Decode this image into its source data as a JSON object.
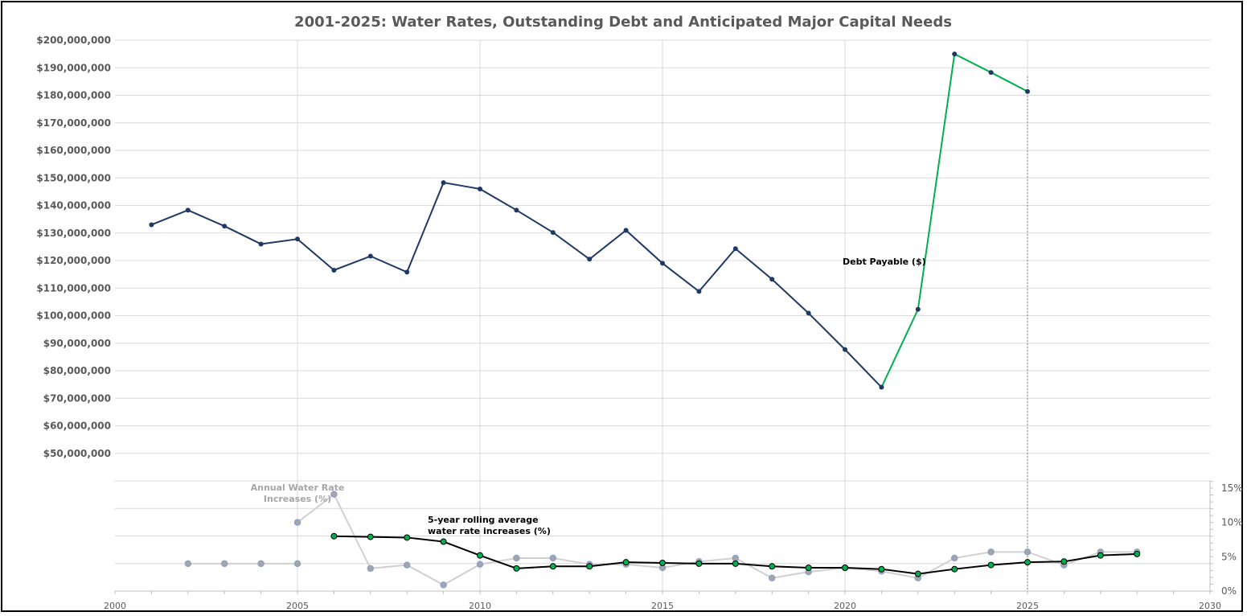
{
  "chart_data": {
    "type": "line",
    "title": "2001-2025: Water Rates, Outstanding Debt and Anticipated Major Capital Needs",
    "xlim": [
      2000,
      2030
    ],
    "x_ticks": [
      "2000",
      "2005",
      "2010",
      "2015",
      "2020",
      "2025",
      "2030"
    ],
    "y_left": {
      "lim": [
        0,
        200000000
      ],
      "tick_labels": [
        "$50,000,000",
        "$60,000,000",
        "$70,000,000",
        "$80,000,000",
        "$90,000,000",
        "$100,000,000",
        "$110,000,000",
        "$120,000,000",
        "$130,000,000",
        "$140,000,000",
        "$150,000,000",
        "$160,000,000",
        "$170,000,000",
        "$180,000,000",
        "$190,000,000",
        "$200,000,000"
      ]
    },
    "y_right": {
      "lim": [
        0,
        15
      ],
      "tick_labels": [
        "0%",
        "5%",
        "10%",
        "15%"
      ]
    },
    "grid": true,
    "reference_line_x": 2025,
    "series": [
      {
        "name": "Debt Payable ($)",
        "axis": "left",
        "color": "#1F3864",
        "projected_color": "#00B050",
        "projected_from": 2021,
        "x": [
          2001,
          2002,
          2003,
          2004,
          2005,
          2006,
          2007,
          2008,
          2009,
          2010,
          2011,
          2012,
          2013,
          2014,
          2015,
          2016,
          2017,
          2018,
          2019,
          2020,
          2021,
          2022,
          2023,
          2024,
          2025
        ],
        "values": [
          133000000,
          138300000,
          132500000,
          126000000,
          127800000,
          116500000,
          121600000,
          115800000,
          148300000,
          146000000,
          138300000,
          130200000,
          120500000,
          131000000,
          119000000,
          108800000,
          124300000,
          113200000,
          100900000,
          87700000,
          74000000,
          102300000,
          195000000,
          188300000,
          181400000
        ]
      },
      {
        "name": "Annual Water Rate Increases (%)",
        "axis": "right",
        "color": "#D0D0D0",
        "marker_color": "#8EA0C8",
        "x": [
          2002,
          2003,
          2004,
          2005,
          2005,
          2006,
          2007,
          2008,
          2009,
          2010,
          2011,
          2012,
          2013,
          2014,
          2015,
          2016,
          2017,
          2018,
          2019,
          2020,
          2021,
          2022,
          2023,
          2024,
          2025,
          2026,
          2027,
          2028
        ],
        "values": [
          4,
          4,
          4,
          4,
          10,
          14.1,
          3.3,
          3.8,
          0.9,
          3.9,
          4.8,
          4.8,
          3.9,
          3.9,
          3.4,
          4.3,
          4.8,
          1.9,
          2.8,
          3.4,
          2.9,
          1.9,
          4.8,
          5.7,
          5.7,
          3.8,
          5.7,
          5.7
        ]
      },
      {
        "name": "5-year rolling average water rate increases (%)",
        "axis": "right",
        "color": "#000000",
        "marker_color": "#00B050",
        "x": [
          2006,
          2007,
          2008,
          2009,
          2010,
          2011,
          2012,
          2013,
          2014,
          2015,
          2016,
          2017,
          2018,
          2019,
          2020,
          2021,
          2022,
          2023,
          2024,
          2025,
          2026,
          2027,
          2028
        ],
        "values": [
          8.0,
          7.9,
          7.8,
          7.2,
          5.2,
          3.3,
          3.6,
          3.6,
          4.2,
          4.1,
          4.0,
          4.0,
          3.6,
          3.4,
          3.4,
          3.2,
          2.5,
          3.2,
          3.8,
          4.2,
          4.3,
          5.2,
          5.4
        ]
      }
    ],
    "annotations": [
      "Debt Payable ($)",
      "Annual Water Rate Increases (%)",
      "5-year rolling average water rate increases (%)"
    ]
  }
}
